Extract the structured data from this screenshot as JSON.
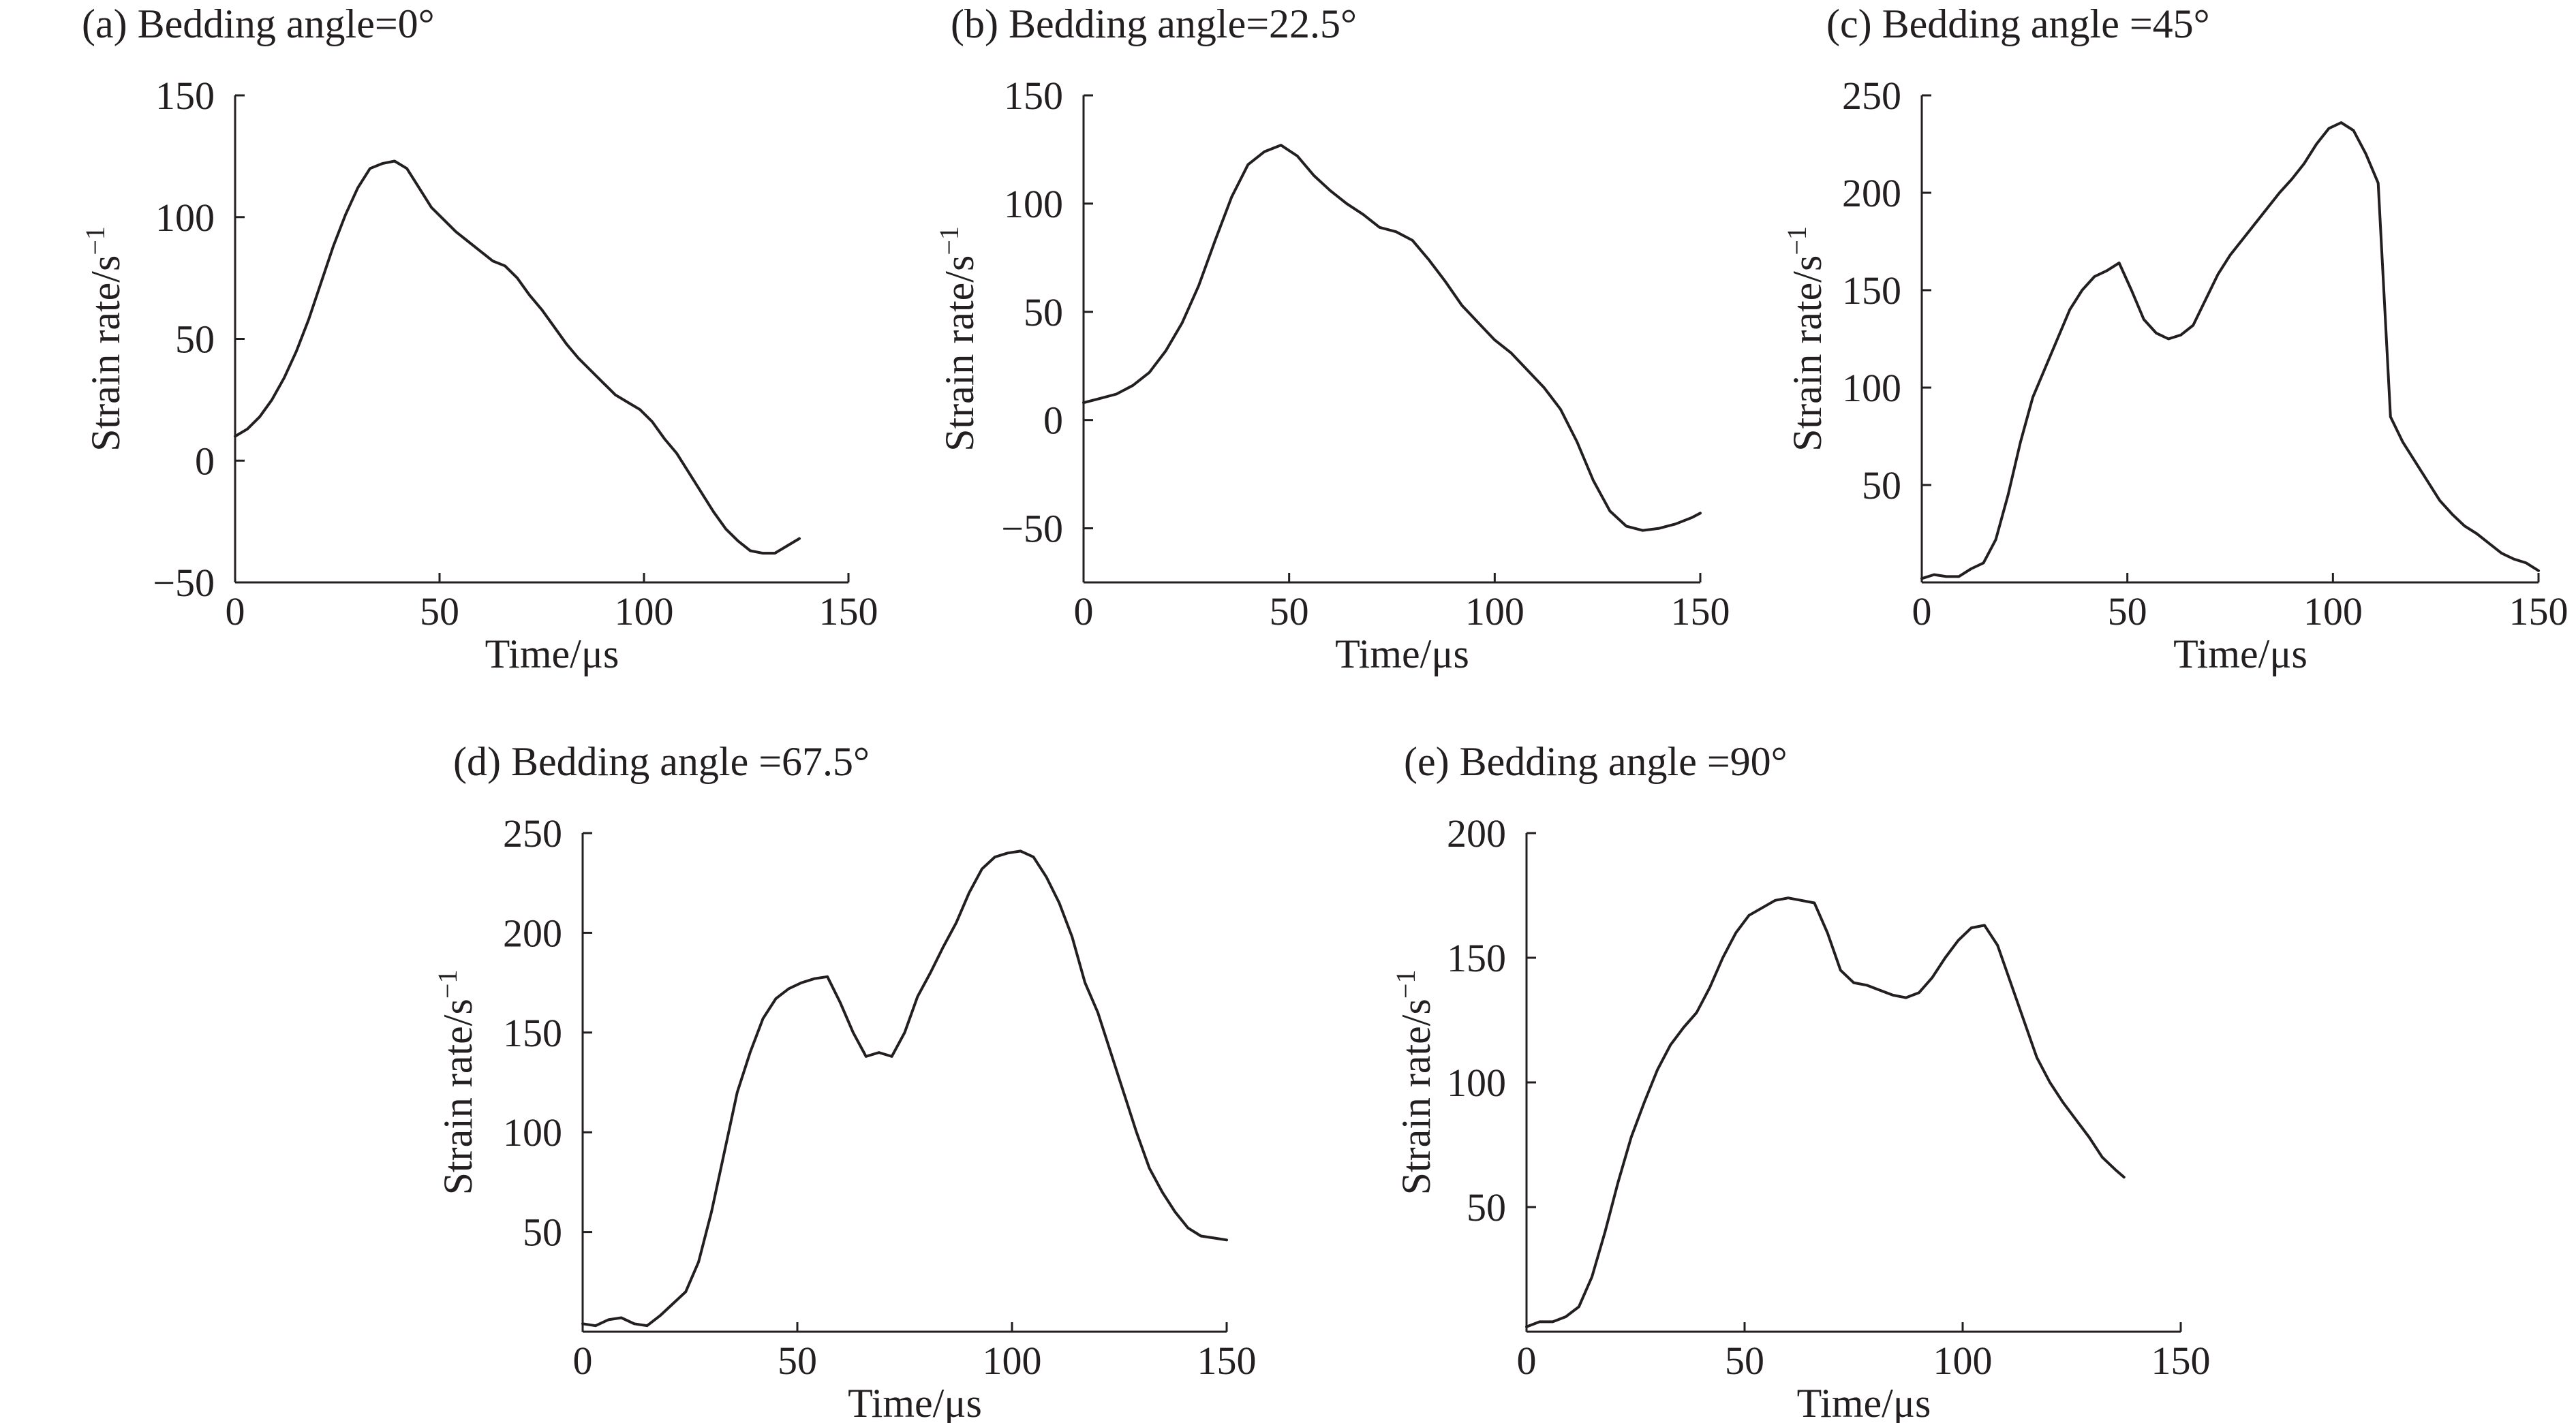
{
  "chart_data": [
    {
      "id": "a",
      "type": "line",
      "title": "(a) Bedding angle=0°",
      "xlabel": "Time/μs",
      "ylabel": "Strain rate/s",
      "ylabel_sup": "−1",
      "xlim": [
        0,
        150
      ],
      "ylim": [
        -50,
        150
      ],
      "xticks": [
        "0",
        "50",
        "100",
        "150"
      ],
      "yticks": [
        "−50",
        "0",
        "50",
        "100",
        "150"
      ],
      "x": [
        0,
        3,
        6,
        9,
        12,
        15,
        18,
        21,
        24,
        27,
        30,
        33,
        36,
        39,
        42,
        45,
        48,
        51,
        54,
        57,
        60,
        63,
        66,
        69,
        72,
        75,
        78,
        81,
        84,
        87,
        90,
        93,
        96,
        99,
        102,
        105,
        108,
        111,
        114,
        117,
        120,
        123,
        126,
        129,
        132,
        135,
        138
      ],
      "y": [
        10,
        13,
        18,
        25,
        34,
        45,
        58,
        73,
        88,
        101,
        112,
        120,
        122,
        123,
        120,
        112,
        104,
        99,
        94,
        90,
        86,
        82,
        80,
        75,
        68,
        62,
        55,
        48,
        42,
        37,
        32,
        27,
        24,
        21,
        16,
        9,
        3,
        -5,
        -13,
        -21,
        -28,
        -33,
        -37,
        -38,
        -38,
        -35,
        -32
      ]
    },
    {
      "id": "b",
      "type": "line",
      "title": "(b) Bedding angle=22.5°",
      "xlabel": "Time/μs",
      "ylabel": "Strain rate/s",
      "ylabel_sup": "−1",
      "xlim": [
        0,
        150
      ],
      "ylim": [
        -75,
        150
      ],
      "xticks": [
        "0",
        "50",
        "100",
        "150"
      ],
      "yticks": [
        "−50",
        "0",
        "50",
        "100",
        "150"
      ],
      "x": [
        0,
        4,
        8,
        12,
        16,
        20,
        24,
        28,
        32,
        36,
        40,
        44,
        48,
        52,
        56,
        60,
        64,
        68,
        72,
        76,
        80,
        84,
        88,
        92,
        96,
        100,
        104,
        108,
        112,
        116,
        120,
        124,
        128,
        132,
        136,
        140,
        144,
        148,
        150
      ],
      "y": [
        8,
        10,
        12,
        16,
        22,
        32,
        45,
        62,
        83,
        103,
        118,
        124,
        127,
        122,
        113,
        106,
        100,
        95,
        89,
        87,
        83,
        74,
        64,
        53,
        45,
        37,
        31,
        23,
        15,
        5,
        -10,
        -28,
        -42,
        -49,
        -51,
        -50,
        -48,
        -45,
        -43
      ]
    },
    {
      "id": "c",
      "type": "line",
      "title": "(c) Bedding angle =45°",
      "xlabel": "Time/μs",
      "ylabel": "Strain rate/s",
      "ylabel_sup": "−1",
      "xlim": [
        0,
        150
      ],
      "ylim": [
        0,
        250
      ],
      "xticks": [
        "0",
        "50",
        "100",
        "150"
      ],
      "yticks": [
        "50",
        "100",
        "150",
        "200",
        "250"
      ],
      "x": [
        0,
        3,
        6,
        9,
        12,
        15,
        18,
        21,
        24,
        27,
        30,
        33,
        36,
        39,
        42,
        45,
        48,
        51,
        54,
        57,
        60,
        63,
        66,
        69,
        72,
        75,
        78,
        81,
        84,
        87,
        90,
        93,
        96,
        99,
        102,
        105,
        108,
        111,
        114,
        117,
        120,
        123,
        126,
        129,
        132,
        135,
        138,
        141,
        144,
        147,
        150
      ],
      "y": [
        2,
        4,
        3,
        3,
        7,
        10,
        22,
        45,
        72,
        95,
        110,
        125,
        140,
        150,
        157,
        160,
        164,
        150,
        135,
        128,
        125,
        127,
        132,
        145,
        158,
        168,
        176,
        184,
        192,
        200,
        207,
        215,
        225,
        233,
        236,
        232,
        220,
        205,
        85,
        72,
        62,
        52,
        42,
        35,
        29,
        25,
        20,
        15,
        12,
        10,
        6
      ]
    },
    {
      "id": "d",
      "type": "line",
      "title": "(d) Bedding angle =67.5°",
      "xlabel": "Time/μs",
      "ylabel": "Strain rate/s",
      "ylabel_sup": "−1",
      "xlim": [
        0,
        150
      ],
      "ylim": [
        0,
        250
      ],
      "xticks": [
        "0",
        "50",
        "100",
        "150"
      ],
      "yticks": [
        "50",
        "100",
        "150",
        "200",
        "250"
      ],
      "x": [
        0,
        3,
        6,
        9,
        12,
        15,
        18,
        21,
        24,
        27,
        30,
        33,
        36,
        39,
        42,
        45,
        48,
        51,
        54,
        57,
        60,
        63,
        66,
        69,
        72,
        75,
        78,
        81,
        84,
        87,
        90,
        93,
        96,
        99,
        102,
        105,
        108,
        111,
        114,
        117,
        120,
        123,
        126,
        129,
        132,
        135,
        138,
        141,
        144,
        147,
        150
      ],
      "y": [
        4,
        3,
        6,
        7,
        4,
        3,
        8,
        14,
        20,
        35,
        60,
        90,
        120,
        140,
        157,
        167,
        172,
        175,
        177,
        178,
        165,
        150,
        138,
        140,
        138,
        150,
        168,
        180,
        193,
        205,
        220,
        232,
        238,
        240,
        241,
        238,
        228,
        215,
        198,
        175,
        160,
        140,
        120,
        100,
        82,
        70,
        60,
        52,
        48,
        47,
        46
      ]
    },
    {
      "id": "e",
      "type": "line",
      "title": "(e) Bedding angle =90°",
      "xlabel": "Time/μs",
      "ylabel": "Strain rate/s",
      "ylabel_sup": "−1",
      "xlim": [
        0,
        150
      ],
      "ylim": [
        0,
        200
      ],
      "xticks": [
        "0",
        "50",
        "100",
        "150"
      ],
      "yticks": [
        "50",
        "100",
        "150",
        "200"
      ],
      "x": [
        0,
        3,
        6,
        9,
        12,
        15,
        18,
        21,
        24,
        27,
        30,
        33,
        36,
        39,
        42,
        45,
        48,
        51,
        54,
        57,
        60,
        63,
        66,
        69,
        72,
        75,
        78,
        81,
        84,
        87,
        90,
        93,
        96,
        99,
        102,
        105,
        108,
        111,
        114,
        117,
        120,
        123,
        126,
        129,
        132,
        135,
        137
      ],
      "y": [
        2,
        4,
        4,
        6,
        10,
        22,
        40,
        60,
        78,
        92,
        105,
        115,
        122,
        128,
        138,
        150,
        160,
        167,
        170,
        173,
        174,
        173,
        172,
        160,
        145,
        140,
        139,
        137,
        135,
        134,
        136,
        142,
        150,
        157,
        162,
        163,
        155,
        140,
        125,
        110,
        100,
        92,
        85,
        78,
        70,
        65,
        62
      ]
    }
  ]
}
